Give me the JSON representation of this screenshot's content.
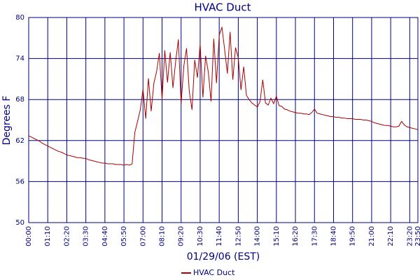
{
  "chart_data": {
    "type": "line",
    "title": "HVAC Duct",
    "xlabel": "01/29/06 (EST)",
    "ylabel": "Degrees F",
    "x": [
      "00:00",
      "00:10",
      "00:20",
      "00:30",
      "00:40",
      "00:50",
      "01:00",
      "01:10",
      "01:20",
      "01:30",
      "01:40",
      "01:50",
      "02:00",
      "02:10",
      "02:20",
      "02:30",
      "02:40",
      "02:50",
      "03:00",
      "03:10",
      "03:20",
      "03:30",
      "03:40",
      "03:50",
      "04:00",
      "04:10",
      "04:20",
      "04:30",
      "04:40",
      "04:50",
      "05:00",
      "05:10",
      "05:20",
      "05:30",
      "05:40",
      "05:50",
      "06:00",
      "06:10",
      "06:20",
      "06:30",
      "06:40",
      "06:50",
      "07:00",
      "07:10",
      "07:20",
      "07:30",
      "07:40",
      "07:50",
      "08:00",
      "08:10",
      "08:20",
      "08:30",
      "08:40",
      "08:50",
      "09:00",
      "09:10",
      "09:20",
      "09:30",
      "09:40",
      "09:50",
      "10:00",
      "10:10",
      "10:20",
      "10:30",
      "10:40",
      "10:50",
      "11:00",
      "11:10",
      "11:20",
      "11:30",
      "11:40",
      "11:50",
      "12:00",
      "12:10",
      "12:20",
      "12:30",
      "12:40",
      "12:50",
      "13:00",
      "13:10",
      "13:20",
      "13:30",
      "13:40",
      "13:50",
      "14:00",
      "14:10",
      "14:20",
      "14:30",
      "14:40",
      "14:50",
      "15:00",
      "15:10",
      "15:20",
      "15:30",
      "15:40",
      "15:50",
      "16:00",
      "16:10",
      "16:20",
      "16:30",
      "16:40",
      "16:50",
      "17:00",
      "17:10",
      "17:20",
      "17:30",
      "17:40",
      "17:50",
      "18:00",
      "18:10",
      "18:20",
      "18:30",
      "18:40",
      "18:50",
      "19:00",
      "19:10",
      "19:20",
      "19:30",
      "19:40",
      "19:50",
      "20:00",
      "20:10",
      "20:20",
      "20:30",
      "20:40",
      "20:50",
      "21:00",
      "21:10",
      "21:20",
      "21:30",
      "21:40",
      "21:50",
      "22:00",
      "22:10",
      "22:20",
      "22:30",
      "22:40",
      "22:50",
      "23:00",
      "23:10",
      "23:20",
      "23:30",
      "23:40",
      "23:50"
    ],
    "series": [
      {
        "name": "HVAC Duct",
        "color": "#aa0000",
        "values": [
          62.7,
          62.5,
          62.3,
          62.1,
          61.9,
          61.6,
          61.4,
          61.2,
          61.0,
          60.8,
          60.6,
          60.4,
          60.3,
          60.1,
          59.9,
          59.8,
          59.7,
          59.6,
          59.5,
          59.5,
          59.4,
          59.4,
          59.2,
          59.1,
          59.0,
          58.9,
          58.8,
          58.7,
          58.7,
          58.6,
          58.6,
          58.6,
          58.5,
          58.5,
          58.5,
          58.4,
          58.5,
          58.4,
          58.6,
          63.2,
          64.8,
          66.5,
          69.5,
          65.2,
          71.1,
          66.3,
          70.4,
          72.1,
          74.8,
          68.0,
          75.2,
          70.5,
          74.9,
          69.7,
          73.6,
          76.8,
          67.4,
          72.9,
          75.5,
          69.2,
          66.5,
          73.8,
          71.2,
          76.1,
          68.3,
          74.4,
          72.0,
          67.7,
          76.9,
          70.4,
          77.4,
          78.6,
          75.3,
          71.8,
          77.9,
          70.9,
          75.6,
          74.1,
          69.4,
          72.8,
          68.6,
          68.0,
          67.5,
          67.2,
          66.9,
          67.7,
          70.9,
          67.5,
          67.2,
          68.2,
          67.4,
          68.5,
          67.1,
          67.0,
          66.6,
          66.5,
          66.3,
          66.2,
          66.1,
          66.0,
          66.0,
          65.9,
          65.9,
          65.8,
          66.1,
          66.6,
          66.0,
          65.9,
          65.8,
          65.7,
          65.6,
          65.5,
          65.5,
          65.4,
          65.4,
          65.3,
          65.3,
          65.2,
          65.2,
          65.2,
          65.1,
          65.1,
          65.1,
          65.0,
          65.0,
          64.9,
          64.8,
          64.6,
          64.5,
          64.4,
          64.3,
          64.2,
          64.2,
          64.1,
          64.0,
          64.0,
          64.1,
          64.8,
          64.3,
          64.0,
          63.9,
          63.8,
          63.7,
          63.6
        ]
      }
    ],
    "xlim": [
      "00:00",
      "23:50"
    ],
    "xticks": [
      "00:00",
      "01:10",
      "02:20",
      "03:30",
      "04:40",
      "05:50",
      "07:00",
      "08:10",
      "09:20",
      "10:30",
      "11:40",
      "12:50",
      "14:00",
      "15:10",
      "16:20",
      "17:30",
      "18:40",
      "19:50",
      "21:00",
      "22:10",
      "23:20",
      "23:50"
    ],
    "ylim": [
      50,
      80
    ],
    "yticks": [
      50,
      56,
      62,
      68,
      74,
      80
    ],
    "grid": true,
    "legend": "bottom"
  }
}
